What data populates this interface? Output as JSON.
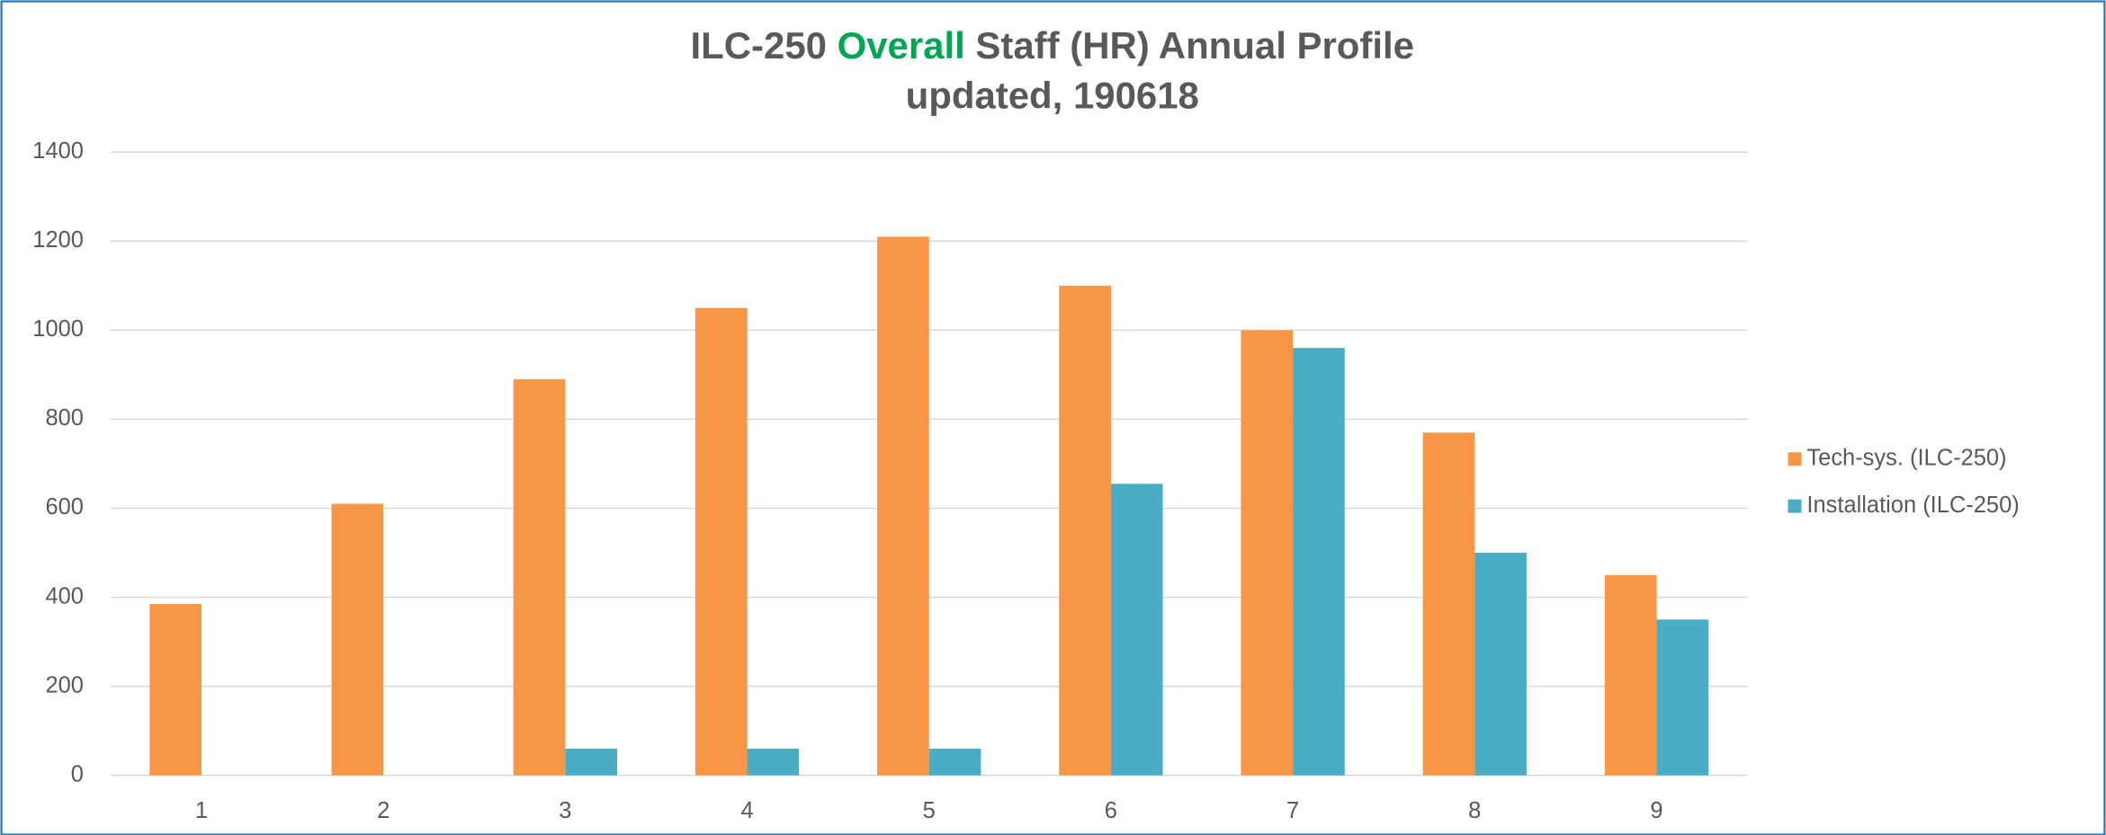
{
  "chart_data": {
    "type": "bar",
    "title": [
      "ILC-250 ",
      "Overall",
      " Staff (HR) Annual Profile"
    ],
    "title_highlight_color": "#00a651",
    "subtitle": "updated, 190618",
    "categories": [
      "1",
      "2",
      "3",
      "4",
      "5",
      "6",
      "7",
      "8",
      "9"
    ],
    "series": [
      {
        "name": "Tech-sys. (ILC-250)",
        "color": "#f79646",
        "values": [
          385,
          610,
          890,
          1050,
          1210,
          1100,
          1000,
          770,
          450
        ]
      },
      {
        "name": "Installation (ILC-250)",
        "color": "#4bacc6",
        "values": [
          0,
          0,
          60,
          60,
          60,
          655,
          960,
          500,
          350
        ]
      }
    ],
    "ylim": [
      0,
      1400
    ],
    "yticks": [
      0,
      200,
      400,
      600,
      800,
      1000,
      1200,
      1400
    ],
    "grid": true,
    "legend": "right"
  }
}
